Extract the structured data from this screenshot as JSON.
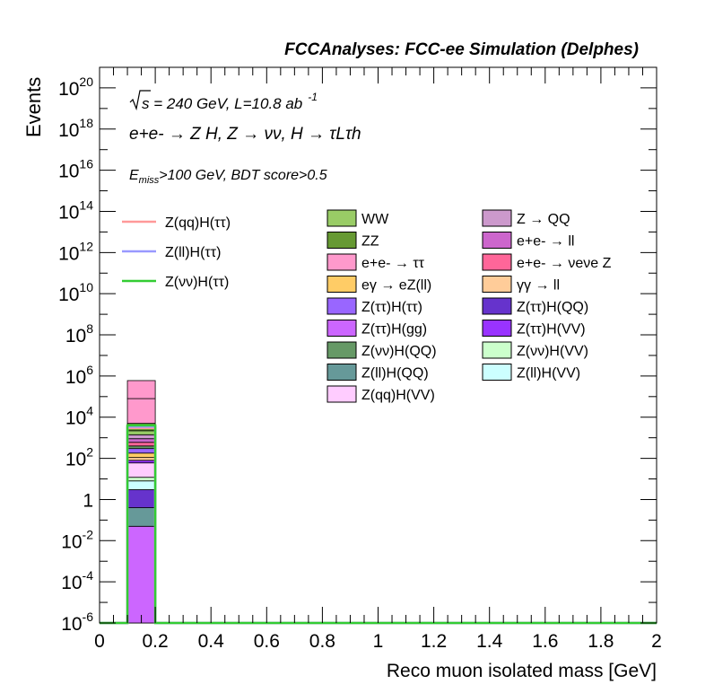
{
  "chart_data": {
    "type": "bar",
    "stacked": true,
    "title": "FCCAnalyses: FCC-ee Simulation (Delphes)",
    "xlabel": "Reco muon isolated mass [GeV]",
    "ylabel": "Events",
    "xlim": [
      0,
      2
    ],
    "ylim": [
      1e-06,
      1e+21
    ],
    "log_y": true,
    "x_ticks": [
      "0",
      "0.2",
      "0.4",
      "0.6",
      "0.8",
      "1",
      "1.2",
      "1.4",
      "1.6",
      "1.8",
      "2"
    ],
    "y_ticks": [
      {
        "base": "10",
        "exp": "-6",
        "value": 1e-06
      },
      {
        "base": "10",
        "exp": "-4",
        "value": 0.0001
      },
      {
        "base": "10",
        "exp": "-2",
        "value": 0.01
      },
      {
        "base": "1",
        "exp": "",
        "value": 1
      },
      {
        "base": "10",
        "exp": "2",
        "value": 100.0
      },
      {
        "base": "10",
        "exp": "4",
        "value": 10000.0
      },
      {
        "base": "10",
        "exp": "6",
        "value": 1000000.0
      },
      {
        "base": "10",
        "exp": "8",
        "value": 100000000.0
      },
      {
        "base": "10",
        "exp": "10",
        "value": 10000000000.0
      },
      {
        "base": "10",
        "exp": "12",
        "value": 1000000000000.0
      },
      {
        "base": "10",
        "exp": "14",
        "value": 100000000000000.0
      },
      {
        "base": "10",
        "exp": "16",
        "value": 1e+16
      },
      {
        "base": "10",
        "exp": "18",
        "value": 1e+18
      },
      {
        "base": "10",
        "exp": "20",
        "value": 1e+20
      }
    ],
    "bin": [
      0.1,
      0.2
    ],
    "stack_bottom_to_top": [
      {
        "name": "Z(ττ)H(gg)",
        "color": "#cc66ff",
        "top": 0.05
      },
      {
        "name": "Z(ll)H(QQ)",
        "color": "#669999",
        "top": 0.4
      },
      {
        "name": "Z(ττ)H(QQ)",
        "color": "#6633cc",
        "top": 3
      },
      {
        "name": "Z(ll)H(VV)",
        "color": "#ccffff",
        "top": 8
      },
      {
        "name": "Z(νν)H(VV)",
        "color": "#ccffcc",
        "top": 12
      },
      {
        "name": "Z(qq)H(VV)",
        "color": "#ffccff",
        "top": 60
      },
      {
        "name": "Z(ττ)H(VV)",
        "color": "#9933ff",
        "top": 80
      },
      {
        "name": "γγ → ll",
        "color": "#ffcc99",
        "top": 110
      },
      {
        "name": "eγ → eZ(ll)",
        "color": "#ffcc66",
        "top": 180
      },
      {
        "name": "Z(ττ)H(ττ)",
        "color": "#9966ff",
        "top": 300
      },
      {
        "name": "Z(νν)H(QQ)",
        "color": "#669966",
        "top": 400
      },
      {
        "name": "e+e- → νeνe Z",
        "color": "#ff6699",
        "top": 600
      },
      {
        "name": "e+e- → ll",
        "color": "#cc66cc",
        "top": 900
      },
      {
        "name": "Z → QQ",
        "color": "#cc99cc",
        "top": 1400
      },
      {
        "name": "WW",
        "color": "#99cc66",
        "top": 2200
      },
      {
        "name": "ZZ",
        "color": "#669933",
        "top": 5000
      },
      {
        "name": "e+e- → ττ",
        "color": "#ff99cc",
        "top": 80000
      },
      {
        "name": "",
        "color": "#ff99cc",
        "top": 600000
      }
    ],
    "signal_lines": [
      {
        "name": "Z(qq)H(ττ)",
        "color": "#ff9999",
        "value": 3000
      },
      {
        "name": "Z(ll)H(ττ)",
        "color": "#9999ff",
        "value": 3500
      },
      {
        "name": "Z(νν)H(ττ)",
        "color": "#33cc33",
        "value": 4000
      }
    ]
  },
  "header": {
    "title": "FCCAnalyses: FCC-ee Simulation (Delphes)"
  },
  "annotations": {
    "energy_line": "s = 240 GeV, L=10.8 ab",
    "lumi_exp": "-1",
    "process": "e+e- → Z H, Z → νν, H → τLτh",
    "selection_prefix": "E",
    "selection_sub": "miss",
    "selection_rest": ">100 GeV, BDT score>0.5"
  },
  "legend": {
    "signals": [
      "Z(qq)H(ττ)",
      "Z(ll)H(ττ)",
      "Z(νν)H(ττ)"
    ],
    "col1": [
      {
        "label": "WW",
        "color": "#99cc66"
      },
      {
        "label": "ZZ",
        "color": "#669933"
      },
      {
        "label": "e+e- → ττ",
        "color": "#ff99cc"
      },
      {
        "label": "eγ → eZ(ll)",
        "color": "#ffcc66"
      },
      {
        "label": "Z(ττ)H(ττ)",
        "color": "#9966ff"
      },
      {
        "label": "Z(ττ)H(gg)",
        "color": "#cc66ff"
      },
      {
        "label": "Z(νν)H(QQ)",
        "color": "#669966"
      },
      {
        "label": "Z(ll)H(QQ)",
        "color": "#669999"
      },
      {
        "label": "Z(qq)H(VV)",
        "color": "#ffccff"
      }
    ],
    "col2": [
      {
        "label": "Z → QQ",
        "color": "#cc99cc"
      },
      {
        "label": "e+e- → ll",
        "color": "#cc66cc"
      },
      {
        "label": "e+e- → νeνe Z",
        "color": "#ff6699"
      },
      {
        "label": "γγ → ll",
        "color": "#ffcc99"
      },
      {
        "label": "Z(ττ)H(QQ)",
        "color": "#6633cc"
      },
      {
        "label": "Z(ττ)H(VV)",
        "color": "#9933ff"
      },
      {
        "label": "Z(νν)H(VV)",
        "color": "#ccffcc"
      },
      {
        "label": "Z(ll)H(VV)",
        "color": "#ccffff"
      }
    ]
  }
}
